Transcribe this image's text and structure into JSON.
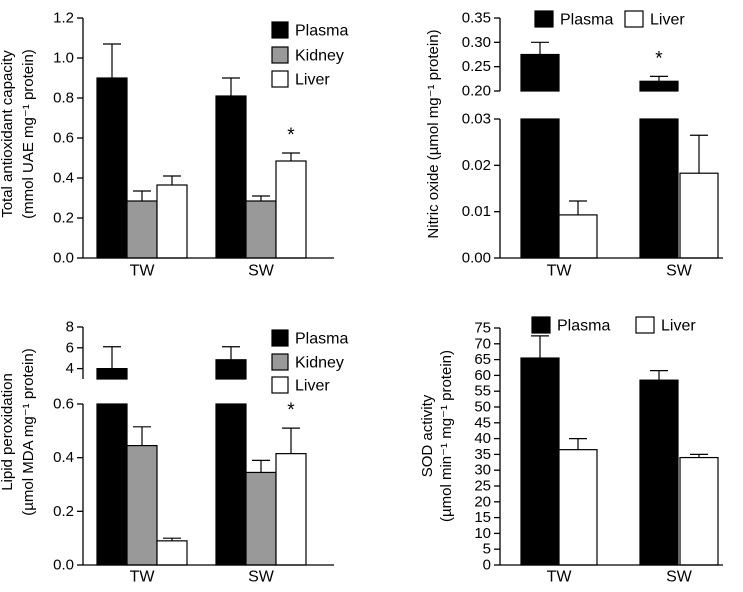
{
  "figure": {
    "categories": [
      "TW",
      "SW"
    ],
    "colors": {
      "plasma": "#000000",
      "kidney": "#999999",
      "liver": "#ffffff",
      "axis": "#000000"
    }
  },
  "chart_data": [
    {
      "type": "bar",
      "panel": "top-left",
      "ylabel_lines": [
        "Total antioxidant capacity",
        "(mmol UAE mg⁻¹ protein)"
      ],
      "categories": [
        "TW",
        "SW"
      ],
      "ylim": [
        0,
        1.2
      ],
      "yticks": [
        "0.0",
        "0.2",
        "0.4",
        "0.6",
        "0.8",
        "1.0",
        "1.2"
      ],
      "series": [
        {
          "name": "Plasma",
          "values": [
            0.9,
            0.81
          ],
          "errors": [
            0.17,
            0.09
          ]
        },
        {
          "name": "Kidney",
          "values": [
            0.285,
            0.285
          ],
          "errors": [
            0.05,
            0.025
          ]
        },
        {
          "name": "Liver",
          "values": [
            0.365,
            0.485
          ],
          "errors": [
            0.045,
            0.04
          ]
        }
      ],
      "legend": [
        "Plasma",
        "Kidney",
        "Liver"
      ],
      "legend_position": "top-right",
      "significance": [
        {
          "series": "Liver",
          "category": "SW",
          "label": "*"
        }
      ]
    },
    {
      "type": "bar",
      "panel": "top-right",
      "broken_axis": true,
      "ylabel_lines": [
        "Nitric oxide (µmol  mg⁻¹ protein)"
      ],
      "categories": [
        "TW",
        "SW"
      ],
      "ylim_lower": [
        0,
        0.03
      ],
      "ylim_upper": [
        0.2,
        0.35
      ],
      "yticks_lower": [
        "0.00",
        "0.01",
        "0.02",
        "0.03"
      ],
      "yticks_upper": [
        "0.20",
        "0.25",
        "0.30",
        "0.35"
      ],
      "series": [
        {
          "name": "Plasma",
          "values": [
            0.275,
            0.22
          ],
          "errors": [
            0.025,
            0.01
          ]
        },
        {
          "name": "Liver",
          "values": [
            0.0093,
            0.0183
          ],
          "errors": [
            0.003,
            0.0082
          ]
        }
      ],
      "legend": [
        "Plasma",
        "Liver"
      ],
      "legend_position": "top",
      "significance": [
        {
          "series": "Plasma",
          "category": "SW",
          "label": "*"
        }
      ]
    },
    {
      "type": "bar",
      "panel": "bottom-left",
      "broken_axis": true,
      "ylabel_lines": [
        "Lipid peroxidation",
        "(µmol MDA mg⁻¹ protein)"
      ],
      "categories": [
        "TW",
        "SW"
      ],
      "ylim_lower": [
        0,
        0.6
      ],
      "ylim_upper": [
        3,
        8
      ],
      "yticks_lower": [
        "0.0",
        "0.2",
        "0.4",
        "0.6"
      ],
      "yticks_upper": [
        "4",
        "6",
        "8"
      ],
      "series": [
        {
          "name": "Plasma",
          "values": [
            4.0,
            4.85
          ],
          "errors": [
            2.1,
            1.25
          ]
        },
        {
          "name": "Kidney",
          "values": [
            0.445,
            0.345
          ],
          "errors": [
            0.07,
            0.045
          ]
        },
        {
          "name": "Liver",
          "values": [
            0.09,
            0.415
          ],
          "errors": [
            0.01,
            0.095
          ]
        }
      ],
      "legend": [
        "Plasma",
        "Kidney",
        "Liver"
      ],
      "legend_position": "top-right",
      "significance": [
        {
          "series": "Liver",
          "category": "SW",
          "label": "*"
        }
      ]
    },
    {
      "type": "bar",
      "panel": "bottom-right",
      "ylabel_lines": [
        "SOD activity",
        "(µmol min⁻¹ mg⁻¹ protein)"
      ],
      "categories": [
        "TW",
        "SW"
      ],
      "ylim": [
        0,
        75
      ],
      "yticks": [
        "0",
        "5",
        "10",
        "15",
        "20",
        "25",
        "30",
        "35",
        "40",
        "45",
        "50",
        "55",
        "60",
        "65",
        "70",
        "75"
      ],
      "series": [
        {
          "name": "Plasma",
          "values": [
            65.5,
            58.5
          ],
          "errors": [
            7.0,
            3.0
          ]
        },
        {
          "name": "Liver",
          "values": [
            36.5,
            34.0
          ],
          "errors": [
            3.5,
            1.0
          ]
        }
      ],
      "legend": [
        "Plasma",
        "Liver"
      ],
      "legend_position": "top"
    }
  ]
}
